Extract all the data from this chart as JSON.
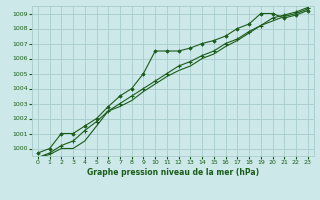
{
  "title": "Graphe pression niveau de la mer (hPa)",
  "bg_color": "#cce8e8",
  "grid_color": "#aacccc",
  "line_color": "#1a5c1a",
  "x_ticks": [
    0,
    1,
    2,
    3,
    4,
    5,
    6,
    7,
    8,
    9,
    10,
    11,
    12,
    13,
    14,
    15,
    16,
    17,
    18,
    19,
    20,
    21,
    22,
    23
  ],
  "y_min": 999.5,
  "y_max": 1009.5,
  "y_ticks": [
    1000,
    1001,
    1002,
    1003,
    1004,
    1005,
    1006,
    1007,
    1008,
    1009
  ],
  "series1_x": [
    0,
    1,
    2,
    3,
    4,
    5,
    6,
    7,
    8,
    9,
    10,
    11,
    12,
    13,
    14,
    15,
    16,
    17,
    18,
    19,
    20,
    21,
    22,
    23
  ],
  "series1_y": [
    999.7,
    1000.0,
    1001.0,
    1001.0,
    1001.5,
    1002.0,
    1002.8,
    1003.5,
    1004.0,
    1005.0,
    1006.5,
    1006.5,
    1006.5,
    1006.7,
    1007.0,
    1007.2,
    1007.5,
    1008.0,
    1008.3,
    1009.0,
    1009.0,
    1008.7,
    1008.9,
    1009.2
  ],
  "series2_x": [
    0,
    1,
    2,
    3,
    4,
    5,
    6,
    7,
    8,
    9,
    10,
    11,
    12,
    13,
    14,
    15,
    16,
    17,
    18,
    19,
    20,
    21,
    22,
    23
  ],
  "series2_y": [
    999.4,
    999.6,
    1000.0,
    1000.0,
    1000.5,
    1001.5,
    1002.5,
    1002.8,
    1003.2,
    1003.8,
    1004.3,
    1004.8,
    1005.2,
    1005.5,
    1006.0,
    1006.3,
    1006.8,
    1007.2,
    1007.7,
    1008.2,
    1008.5,
    1008.8,
    1009.0,
    1009.3
  ],
  "series3_x": [
    0,
    1,
    2,
    3,
    4,
    5,
    6,
    7,
    8,
    9,
    10,
    11,
    12,
    13,
    14,
    15,
    16,
    17,
    18,
    19,
    20,
    21,
    22,
    23
  ],
  "series3_y": [
    999.4,
    999.7,
    1000.2,
    1000.5,
    1001.2,
    1001.8,
    1002.5,
    1003.0,
    1003.5,
    1004.0,
    1004.5,
    1005.0,
    1005.5,
    1005.8,
    1006.2,
    1006.5,
    1007.0,
    1007.3,
    1007.8,
    1008.2,
    1008.7,
    1008.9,
    1009.1,
    1009.4
  ]
}
